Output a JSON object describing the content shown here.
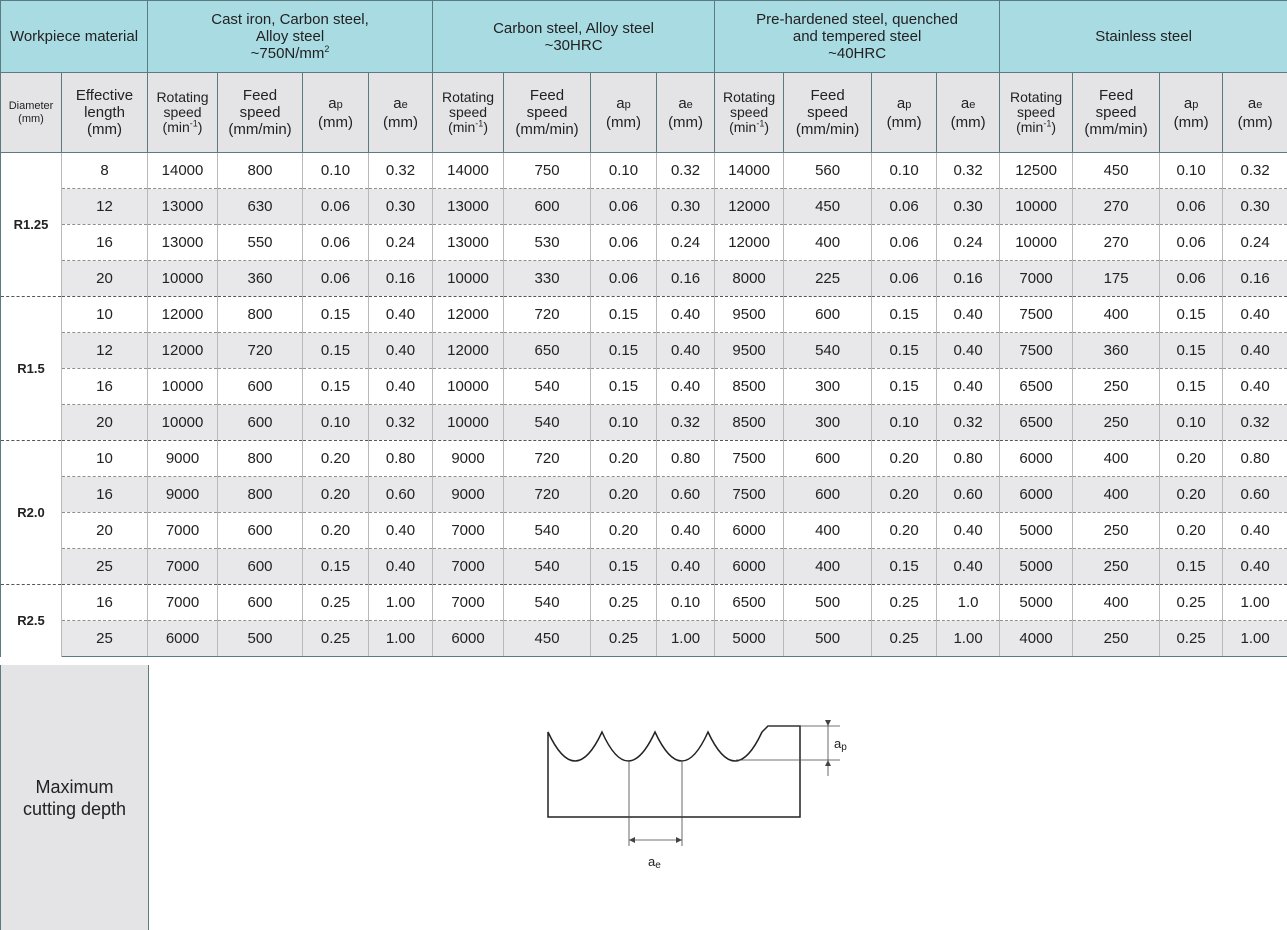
{
  "header": {
    "workpiece_label": "Workpiece material",
    "materials": [
      {
        "line1": "Cast iron, Carbon steel,",
        "line2": "Alloy steel",
        "line3": "~750N/mm",
        "sup": "2"
      },
      {
        "line1": "Carbon steel, Alloy steel",
        "line2": "~30HRC",
        "line3": "",
        "sup": ""
      },
      {
        "line1": "Pre-hardened steel, quenched",
        "line2": "and tempered steel",
        "line3": "~40HRC",
        "sup": ""
      },
      {
        "line1": "Stainless steel",
        "line2": "",
        "line3": "",
        "sup": ""
      }
    ]
  },
  "columns": {
    "diameter": {
      "line1": "Diameter",
      "line2": "(mm)"
    },
    "effective_length": {
      "line1": "Effective",
      "line2": "length",
      "line3": "(mm)"
    },
    "rotating": {
      "line1": "Rotating",
      "line2": "speed",
      "line3": "(min",
      "sup": "-1",
      "close": ")"
    },
    "feed": {
      "line1": "Feed",
      "line2": "speed",
      "line3": "(mm/min)"
    },
    "ap": {
      "main": "a",
      "sub": "p",
      "unit": "(mm)"
    },
    "ae": {
      "main": "a",
      "sub": "e",
      "unit": "(mm)"
    }
  },
  "groups": [
    {
      "diameter": "R1.25",
      "rows": [
        {
          "length": "8",
          "values": [
            "14000",
            "800",
            "0.10",
            "0.32",
            "14000",
            "750",
            "0.10",
            "0.32",
            "14000",
            "560",
            "0.10",
            "0.32",
            "12500",
            "450",
            "0.10",
            "0.32"
          ]
        },
        {
          "length": "12",
          "values": [
            "13000",
            "630",
            "0.06",
            "0.30",
            "13000",
            "600",
            "0.06",
            "0.30",
            "12000",
            "450",
            "0.06",
            "0.30",
            "10000",
            "270",
            "0.06",
            "0.30"
          ]
        },
        {
          "length": "16",
          "values": [
            "13000",
            "550",
            "0.06",
            "0.24",
            "13000",
            "530",
            "0.06",
            "0.24",
            "12000",
            "400",
            "0.06",
            "0.24",
            "10000",
            "270",
            "0.06",
            "0.24"
          ]
        },
        {
          "length": "20",
          "values": [
            "10000",
            "360",
            "0.06",
            "0.16",
            "10000",
            "330",
            "0.06",
            "0.16",
            "8000",
            "225",
            "0.06",
            "0.16",
            "7000",
            "175",
            "0.06",
            "0.16"
          ]
        }
      ]
    },
    {
      "diameter": "R1.5",
      "rows": [
        {
          "length": "10",
          "values": [
            "12000",
            "800",
            "0.15",
            "0.40",
            "12000",
            "720",
            "0.15",
            "0.40",
            "9500",
            "600",
            "0.15",
            "0.40",
            "7500",
            "400",
            "0.15",
            "0.40"
          ]
        },
        {
          "length": "12",
          "values": [
            "12000",
            "720",
            "0.15",
            "0.40",
            "12000",
            "650",
            "0.15",
            "0.40",
            "9500",
            "540",
            "0.15",
            "0.40",
            "7500",
            "360",
            "0.15",
            "0.40"
          ]
        },
        {
          "length": "16",
          "values": [
            "10000",
            "600",
            "0.15",
            "0.40",
            "10000",
            "540",
            "0.15",
            "0.40",
            "8500",
            "300",
            "0.15",
            "0.40",
            "6500",
            "250",
            "0.15",
            "0.40"
          ]
        },
        {
          "length": "20",
          "values": [
            "10000",
            "600",
            "0.10",
            "0.32",
            "10000",
            "540",
            "0.10",
            "0.32",
            "8500",
            "300",
            "0.10",
            "0.32",
            "6500",
            "250",
            "0.10",
            "0.32"
          ]
        }
      ]
    },
    {
      "diameter": "R2.0",
      "rows": [
        {
          "length": "10",
          "values": [
            "9000",
            "800",
            "0.20",
            "0.80",
            "9000",
            "720",
            "0.20",
            "0.80",
            "7500",
            "600",
            "0.20",
            "0.80",
            "6000",
            "400",
            "0.20",
            "0.80"
          ]
        },
        {
          "length": "16",
          "values": [
            "9000",
            "800",
            "0.20",
            "0.60",
            "9000",
            "720",
            "0.20",
            "0.60",
            "7500",
            "600",
            "0.20",
            "0.60",
            "6000",
            "400",
            "0.20",
            "0.60"
          ]
        },
        {
          "length": "20",
          "values": [
            "7000",
            "600",
            "0.20",
            "0.40",
            "7000",
            "540",
            "0.20",
            "0.40",
            "6000",
            "400",
            "0.20",
            "0.40",
            "5000",
            "250",
            "0.20",
            "0.40"
          ]
        },
        {
          "length": "25",
          "values": [
            "7000",
            "600",
            "0.15",
            "0.40",
            "7000",
            "540",
            "0.15",
            "0.40",
            "6000",
            "400",
            "0.15",
            "0.40",
            "5000",
            "250",
            "0.15",
            "0.40"
          ]
        }
      ]
    },
    {
      "diameter": "R2.5",
      "rows": [
        {
          "length": "16",
          "values": [
            "7000",
            "600",
            "0.25",
            "1.00",
            "7000",
            "540",
            "0.25",
            "0.10",
            "6500",
            "500",
            "0.25",
            "1.0",
            "5000",
            "400",
            "0.25",
            "1.00"
          ]
        },
        {
          "length": "25",
          "values": [
            "6000",
            "500",
            "0.25",
            "1.00",
            "6000",
            "450",
            "0.25",
            "1.00",
            "5000",
            "500",
            "0.25",
            "1.00",
            "4000",
            "250",
            "0.25",
            "1.00"
          ]
        }
      ]
    }
  ],
  "depth": {
    "label_line1": "Maximum",
    "label_line2": "cutting depth",
    "ap_main": "a",
    "ap_sub": "p",
    "ae_main": "a",
    "ae_sub": "e"
  }
}
